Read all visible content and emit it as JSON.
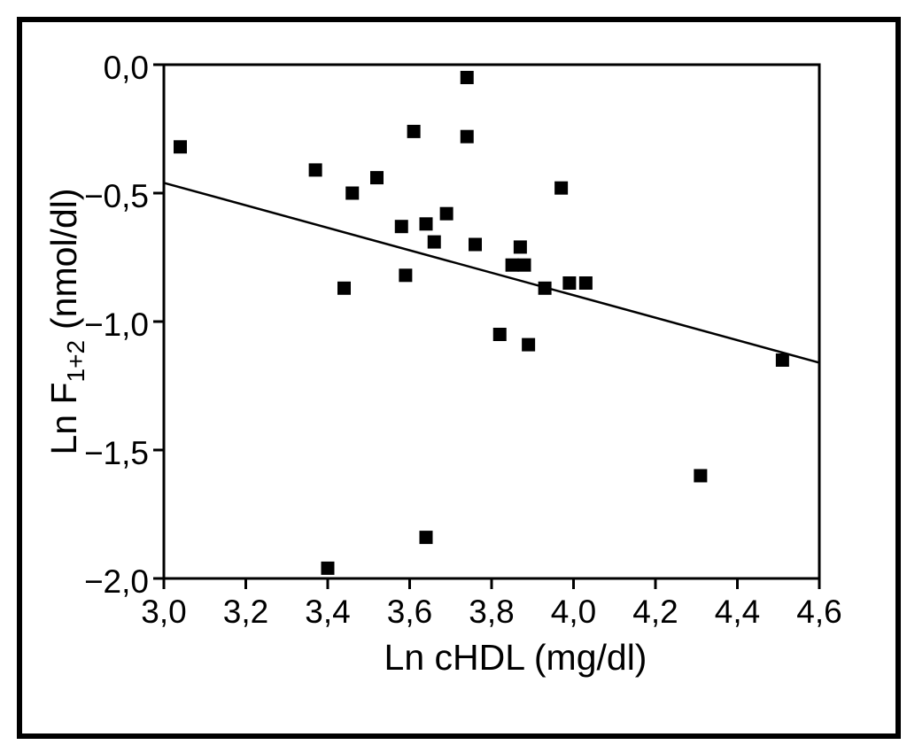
{
  "figure": {
    "background": "#ffffff",
    "frame_color": "#000000"
  },
  "chart_data": {
    "type": "scatter",
    "title": "",
    "xlabel": "Ln cHDL (mg/dl)",
    "ylabel": "Ln F1+2 (nmol/dl)",
    "ylabel_parts": {
      "prefix": "Ln F",
      "subscript": "1+2",
      "suffix": "(nmol/dl)"
    },
    "xlim": [
      3.0,
      4.6
    ],
    "ylim": [
      -2.0,
      0.0
    ],
    "grid": false,
    "x_ticks": [
      {
        "value": 3.0,
        "label": "3,0"
      },
      {
        "value": 3.2,
        "label": "3,2"
      },
      {
        "value": 3.4,
        "label": "3,4"
      },
      {
        "value": 3.6,
        "label": "3,6"
      },
      {
        "value": 3.8,
        "label": "3,8"
      },
      {
        "value": 4.0,
        "label": "4,0"
      },
      {
        "value": 4.2,
        "label": "4,2"
      },
      {
        "value": 4.4,
        "label": "4,4"
      },
      {
        "value": 4.6,
        "label": "4,6"
      }
    ],
    "y_ticks": [
      {
        "value": 0.0,
        "label": "0,0"
      },
      {
        "value": -0.5,
        "label": "−0,5"
      },
      {
        "value": -1.0,
        "label": "−1,0"
      },
      {
        "value": -1.5,
        "label": "−1,5"
      },
      {
        "value": -2.0,
        "label": "−2,0"
      }
    ],
    "points": [
      [
        3.04,
        -0.32
      ],
      [
        3.37,
        -0.41
      ],
      [
        3.4,
        -1.96
      ],
      [
        3.44,
        -0.87
      ],
      [
        3.46,
        -0.5
      ],
      [
        3.52,
        -0.44
      ],
      [
        3.58,
        -0.63
      ],
      [
        3.59,
        -0.82
      ],
      [
        3.61,
        -0.26
      ],
      [
        3.64,
        -0.62
      ],
      [
        3.64,
        -1.84
      ],
      [
        3.66,
        -0.69
      ],
      [
        3.69,
        -0.58
      ],
      [
        3.74,
        -0.05
      ],
      [
        3.74,
        -0.28
      ],
      [
        3.76,
        -0.7
      ],
      [
        3.82,
        -1.05
      ],
      [
        3.85,
        -0.78
      ],
      [
        3.87,
        -0.71
      ],
      [
        3.88,
        -0.78
      ],
      [
        3.89,
        -1.09
      ],
      [
        3.93,
        -0.87
      ],
      [
        3.97,
        -0.48
      ],
      [
        3.99,
        -0.85
      ],
      [
        4.03,
        -0.85
      ],
      [
        4.31,
        -1.6
      ],
      [
        4.51,
        -1.15
      ]
    ],
    "trend_line": {
      "x1": 3.0,
      "y1": -0.46,
      "x2": 4.6,
      "y2": -1.16
    },
    "marker": {
      "shape": "square",
      "size": 15,
      "color": "#000000"
    }
  }
}
